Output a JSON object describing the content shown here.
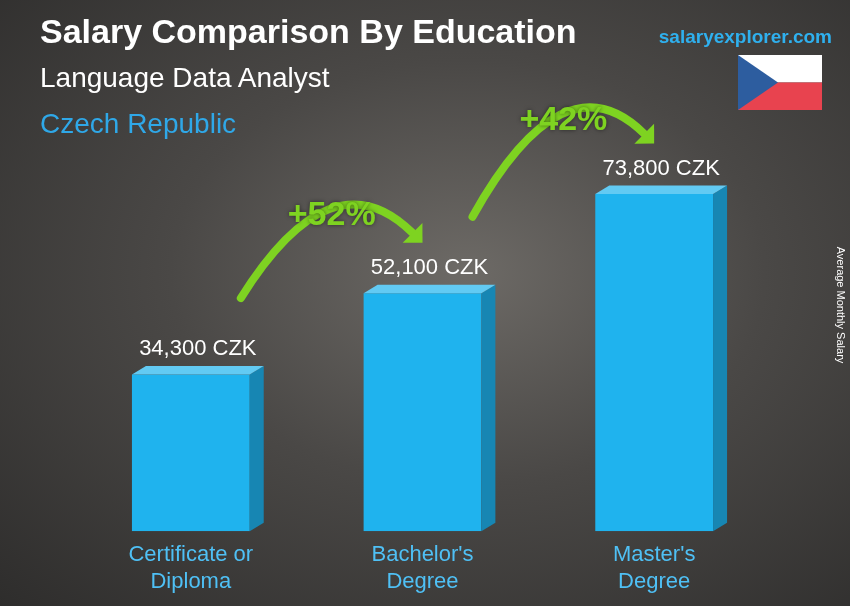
{
  "chart_data": {
    "type": "bar",
    "title": "Salary Comparison By Education",
    "subtitle": "Language Data Analyst",
    "location": "Czech Republic",
    "source": "salaryexplorer.com",
    "y_label": "Average Monthly Salary",
    "categories": [
      "Certificate or Diploma",
      "Bachelor's Degree",
      "Master's Degree"
    ],
    "values": [
      34300,
      52100,
      73800
    ],
    "value_labels": [
      "34,300 CZK",
      "52,100 CZK",
      "73,800 CZK"
    ],
    "data_labels": true,
    "color": "#1fb3ee",
    "ylim": [
      0,
      90000
    ],
    "tick_labels": "x",
    "grid": false,
    "annotations": [
      {
        "label": "+52%",
        "from": "Certificate or Diploma",
        "to": "Bachelor's Degree"
      },
      {
        "label": "+42%",
        "from": "Bachelor's Degree",
        "to": "Master's Degree"
      }
    ]
  }
}
